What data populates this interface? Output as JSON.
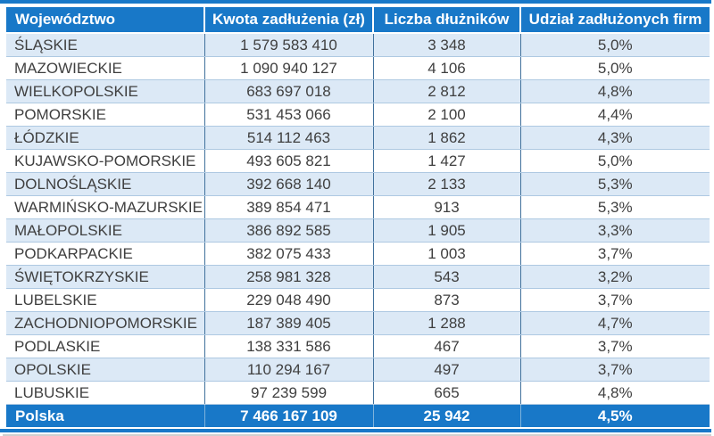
{
  "colors": {
    "header_bg": "#1878C8",
    "header_text": "#FFFFFF",
    "band_bg": "#DCE9F6",
    "row_border": "#AEC9E2",
    "col_border": "#41719C",
    "footer_divider": "#7EB3DC",
    "text": "#3F3F3F",
    "page_bg": "#FFFFFF",
    "edge_shadow": "#CFCFCF"
  },
  "table": {
    "columns": [
      "Województwo",
      "Kwota zadłużenia (zł)",
      "Liczba dłużników",
      "Udział zadłużonych firm"
    ],
    "rows": [
      {
        "region": "ŚLĄSKIE",
        "amount": "1 579 583 410",
        "debtors": "3 348",
        "share": "5,0%"
      },
      {
        "region": "MAZOWIECKIE",
        "amount": "1 090 940 127",
        "debtors": "4 106",
        "share": "5,0%"
      },
      {
        "region": "WIELKOPOLSKIE",
        "amount": "683 697 018",
        "debtors": "2 812",
        "share": "4,8%"
      },
      {
        "region": "POMORSKIE",
        "amount": "531 453 066",
        "debtors": "2 100",
        "share": "4,4%"
      },
      {
        "region": "ŁÓDZKIE",
        "amount": "514 112 463",
        "debtors": "1 862",
        "share": "4,3%"
      },
      {
        "region": "KUJAWSKO-POMORSKIE",
        "amount": "493 605 821",
        "debtors": "1 427",
        "share": "5,0%"
      },
      {
        "region": "DOLNOŚLĄSKIE",
        "amount": "392 668 140",
        "debtors": "2 133",
        "share": "5,3%"
      },
      {
        "region": "WARMIŃSKO-MAZURSKIE",
        "amount": "389 854 471",
        "debtors": "913",
        "share": "5,3%"
      },
      {
        "region": "MAŁOPOLSKIE",
        "amount": "386 892 585",
        "debtors": "1 905",
        "share": "3,3%"
      },
      {
        "region": "PODKARPACKIE",
        "amount": "382 075 433",
        "debtors": "1 003",
        "share": "3,7%"
      },
      {
        "region": "ŚWIĘTOKRZYSKIE",
        "amount": "258 981 328",
        "debtors": "543",
        "share": "3,2%"
      },
      {
        "region": "LUBELSKIE",
        "amount": "229 048 490",
        "debtors": "873",
        "share": "3,7%"
      },
      {
        "region": "ZACHODNIOPOMORSKIE",
        "amount": "187 389 405",
        "debtors": "1 288",
        "share": "4,7%"
      },
      {
        "region": "PODLASKIE",
        "amount": "138 331 586",
        "debtors": "467",
        "share": "3,7%"
      },
      {
        "region": "OPOLSKIE",
        "amount": "110 294 167",
        "debtors": "497",
        "share": "3,7%"
      },
      {
        "region": "LUBUSKIE",
        "amount": "97 239 599",
        "debtors": "665",
        "share": "4,8%"
      }
    ],
    "footer": {
      "region": "Polska",
      "amount": "7 466 167 109",
      "debtors": "25 942",
      "share": "4,5%"
    }
  },
  "chart_data": {
    "type": "table",
    "title": "",
    "columns": [
      "Województwo",
      "Kwota zadłużenia (zł)",
      "Liczba dłużników",
      "Udział zadłużonych firm"
    ],
    "rows": [
      [
        "ŚLĄSKIE",
        1579583410,
        3348,
        "5,0%"
      ],
      [
        "MAZOWIECKIE",
        1090940127,
        4106,
        "5,0%"
      ],
      [
        "WIELKOPOLSKIE",
        683697018,
        2812,
        "4,8%"
      ],
      [
        "POMORSKIE",
        531453066,
        2100,
        "4,4%"
      ],
      [
        "ŁÓDZKIE",
        514112463,
        1862,
        "4,3%"
      ],
      [
        "KUJAWSKO-POMORSKIE",
        493605821,
        1427,
        "5,0%"
      ],
      [
        "DOLNOŚLĄSKIE",
        392668140,
        2133,
        "5,3%"
      ],
      [
        "WARMIŃSKO-MAZURSKIE",
        389854471,
        913,
        "5,3%"
      ],
      [
        "MAŁOPOLSKIE",
        386892585,
        1905,
        "3,3%"
      ],
      [
        "PODKARPACKIE",
        382075433,
        1003,
        "3,7%"
      ],
      [
        "ŚWIĘTOKRZYSKIE",
        258981328,
        543,
        "3,2%"
      ],
      [
        "LUBELSKIE",
        229048490,
        873,
        "3,7%"
      ],
      [
        "ZACHODNIOPOMORSKIE",
        187389405,
        1288,
        "4,7%"
      ],
      [
        "PODLASKIE",
        138331586,
        467,
        "3,7%"
      ],
      [
        "OPOLSKIE",
        110294167,
        497,
        "3,7%"
      ],
      [
        "LUBUSKIE",
        97239599,
        665,
        "4,8%"
      ]
    ],
    "footer": [
      "Polska",
      7466167109,
      25942,
      "4,5%"
    ],
    "layout": {
      "banded_rows": true,
      "header_fill": "#1878C8",
      "band_fill": "#DCE9F6"
    }
  }
}
